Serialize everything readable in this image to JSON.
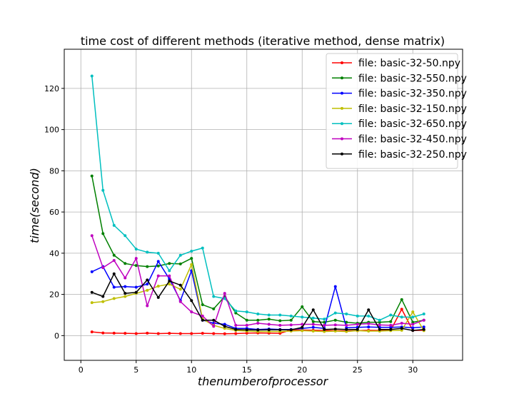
{
  "chart_data": {
    "type": "line",
    "title": "time cost of different methods (iterative method, dense matrix)",
    "xlabel": "thenumberofprocessor",
    "ylabel": "time(second)",
    "xlim": [
      -1.5,
      34.5
    ],
    "ylim": [
      -12,
      139
    ],
    "xticks": [
      0,
      5,
      10,
      15,
      20,
      25,
      30
    ],
    "yticks": [
      0,
      20,
      40,
      60,
      80,
      100,
      120
    ],
    "grid": true,
    "legend_position": "top-right",
    "x": [
      1,
      2,
      3,
      4,
      5,
      6,
      7,
      8,
      9,
      10,
      11,
      12,
      13,
      14,
      15,
      16,
      17,
      18,
      19,
      20,
      21,
      22,
      23,
      24,
      25,
      26,
      27,
      28,
      29,
      30,
      31
    ],
    "series": [
      {
        "name": "file: basic-32-50.npy",
        "color": "#ff0000",
        "values": [
          1.8,
          1.3,
          1.2,
          1.1,
          1.0,
          1.2,
          1.0,
          1.1,
          1.0,
          1.0,
          1.1,
          1.0,
          0.9,
          1.0,
          1.2,
          1.3,
          1.2,
          1.1,
          2.8,
          2.7,
          2.6,
          2.5,
          2.4,
          2.3,
          2.4,
          2.6,
          2.5,
          2.6,
          12.8,
          2.5,
          2.6
        ]
      },
      {
        "name": "file: basic-32-550.npy",
        "color": "#008000",
        "values": [
          77.5,
          49.5,
          39.0,
          35.0,
          34.0,
          33.5,
          33.8,
          35.0,
          34.8,
          37.5,
          15.0,
          13.0,
          19.0,
          11.0,
          7.5,
          7.5,
          8.0,
          7.2,
          7.5,
          14.0,
          6.8,
          6.5,
          7.5,
          6.5,
          6.0,
          6.5,
          6.5,
          6.8,
          17.5,
          6.5,
          7.5
        ]
      },
      {
        "name": "file: basic-32-350.npy",
        "color": "#0000ff",
        "values": [
          31.0,
          33.5,
          23.5,
          23.8,
          23.5,
          25.0,
          36.0,
          27.5,
          17.0,
          31.5,
          7.5,
          6.0,
          5.5,
          3.5,
          3.5,
          3.0,
          3.2,
          3.0,
          3.0,
          3.5,
          4.0,
          3.5,
          23.8,
          3.8,
          4.0,
          4.2,
          4.0,
          4.0,
          4.2,
          3.8,
          4.2
        ]
      },
      {
        "name": "file: basic-32-150.npy",
        "color": "#bfbf00",
        "values": [
          16.0,
          16.5,
          18.0,
          19.0,
          20.5,
          22.0,
          24.0,
          25.0,
          22.5,
          34.5,
          8.0,
          5.0,
          3.5,
          2.5,
          2.2,
          2.0,
          2.0,
          2.0,
          2.2,
          2.4,
          2.2,
          2.0,
          2.2,
          2.0,
          2.4,
          2.2,
          2.2,
          2.4,
          2.6,
          11.5,
          2.4
        ]
      },
      {
        "name": "file: basic-32-650.npy",
        "color": "#00bfbf",
        "values": [
          126.0,
          70.5,
          53.5,
          48.5,
          42.0,
          40.5,
          40.0,
          31.5,
          39.0,
          41.0,
          42.5,
          19.0,
          18.0,
          12.0,
          11.5,
          10.5,
          10.0,
          10.0,
          9.5,
          9.0,
          8.5,
          8.0,
          11.0,
          10.5,
          9.5,
          9.5,
          7.5,
          10.0,
          9.0,
          9.0,
          10.5
        ]
      },
      {
        "name": "file: basic-32-450.npy",
        "color": "#bf00bf",
        "values": [
          48.5,
          33.0,
          36.5,
          28.0,
          37.5,
          14.5,
          29.0,
          29.0,
          16.5,
          11.5,
          9.5,
          4.5,
          20.5,
          5.0,
          5.0,
          6.0,
          5.5,
          5.0,
          5.2,
          5.5,
          5.5,
          5.0,
          5.2,
          5.0,
          5.5,
          5.8,
          5.2,
          5.0,
          6.0,
          5.5,
          7.5
        ]
      },
      {
        "name": "file: basic-32-250.npy",
        "color": "#000000",
        "values": [
          21.0,
          19.0,
          30.0,
          20.5,
          21.0,
          27.0,
          18.5,
          26.5,
          24.5,
          17.0,
          7.5,
          7.5,
          4.5,
          3.0,
          2.8,
          2.7,
          2.8,
          2.8,
          2.8,
          4.0,
          12.5,
          3.0,
          3.2,
          3.0,
          3.0,
          12.5,
          3.0,
          3.0,
          3.5,
          2.5,
          3.0
        ]
      }
    ]
  }
}
